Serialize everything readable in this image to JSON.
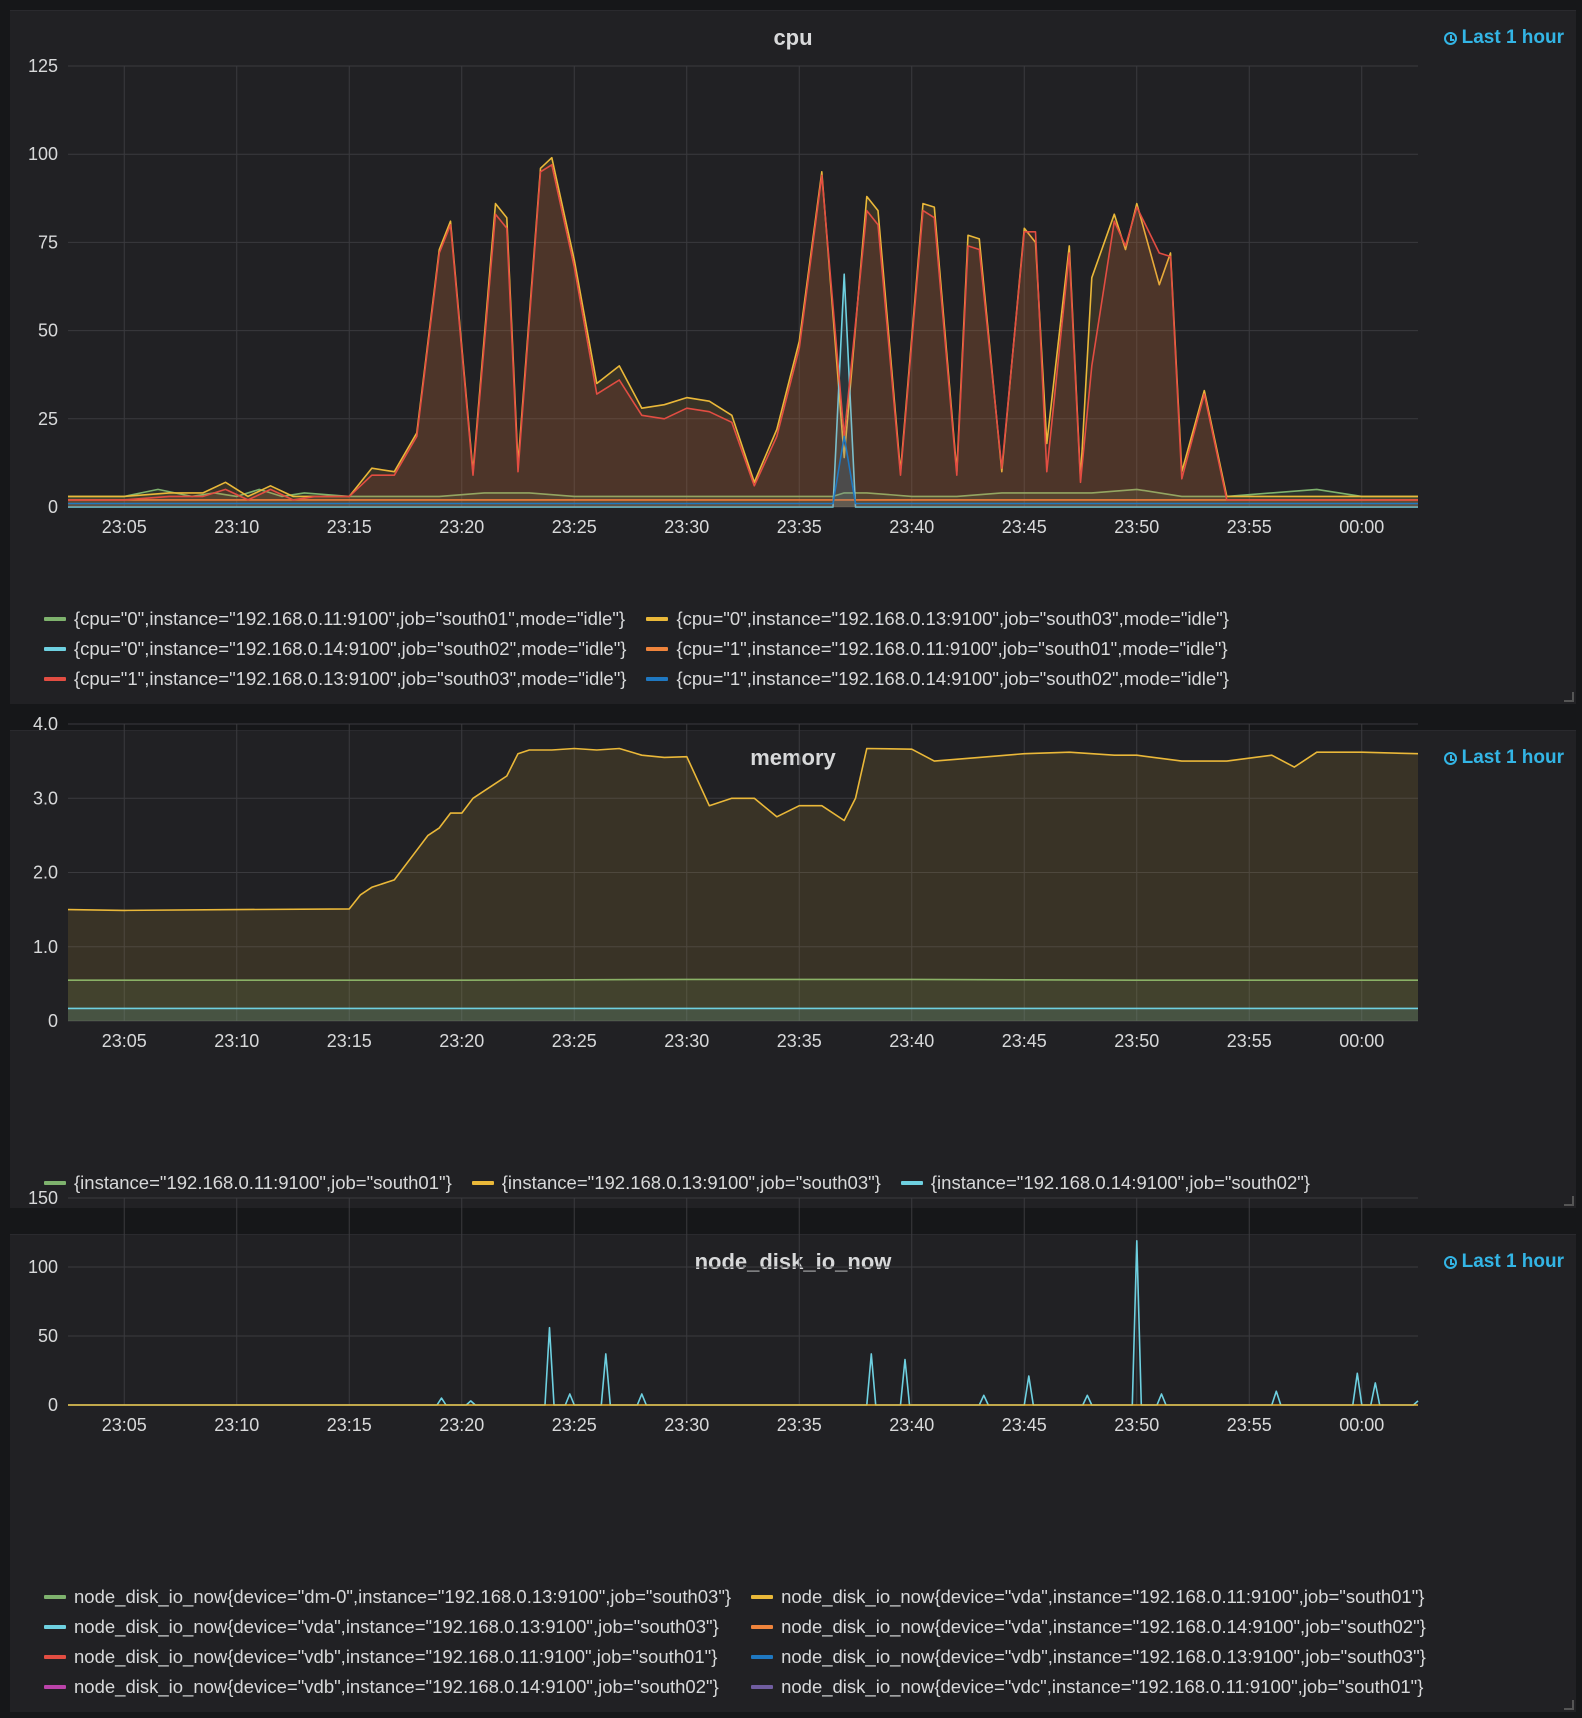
{
  "timerange_label": "Last 1 hour",
  "panels": {
    "cpu": {
      "title": "cpu",
      "legend": [
        {
          "label": "{cpu=\"0\",instance=\"192.168.0.11:9100\",job=\"south01\",mode=\"idle\"}",
          "color": "#7eb26d"
        },
        {
          "label": "{cpu=\"0\",instance=\"192.168.0.13:9100\",job=\"south03\",mode=\"idle\"}",
          "color": "#eab839"
        },
        {
          "label": "{cpu=\"0\",instance=\"192.168.0.14:9100\",job=\"south02\",mode=\"idle\"}",
          "color": "#6ed0e0"
        },
        {
          "label": "{cpu=\"1\",instance=\"192.168.0.11:9100\",job=\"south01\",mode=\"idle\"}",
          "color": "#ef843c"
        },
        {
          "label": "{cpu=\"1\",instance=\"192.168.0.13:9100\",job=\"south03\",mode=\"idle\"}",
          "color": "#e24d42"
        },
        {
          "label": "{cpu=\"1\",instance=\"192.168.0.14:9100\",job=\"south02\",mode=\"idle\"}",
          "color": "#1f78c1"
        }
      ]
    },
    "memory": {
      "title": "memory",
      "legend": [
        {
          "label": "{instance=\"192.168.0.11:9100\",job=\"south01\"}",
          "color": "#7eb26d"
        },
        {
          "label": "{instance=\"192.168.0.13:9100\",job=\"south03\"}",
          "color": "#eab839"
        },
        {
          "label": "{instance=\"192.168.0.14:9100\",job=\"south02\"}",
          "color": "#6ed0e0"
        }
      ]
    },
    "disk": {
      "title": "node_disk_io_now",
      "legend": [
        {
          "label": "node_disk_io_now{device=\"dm-0\",instance=\"192.168.0.13:9100\",job=\"south03\"}",
          "color": "#7eb26d"
        },
        {
          "label": "node_disk_io_now{device=\"vda\",instance=\"192.168.0.11:9100\",job=\"south01\"}",
          "color": "#eab839"
        },
        {
          "label": "node_disk_io_now{device=\"vda\",instance=\"192.168.0.13:9100\",job=\"south03\"}",
          "color": "#6ed0e0"
        },
        {
          "label": "node_disk_io_now{device=\"vda\",instance=\"192.168.0.14:9100\",job=\"south02\"}",
          "color": "#ef843c"
        },
        {
          "label": "node_disk_io_now{device=\"vdb\",instance=\"192.168.0.11:9100\",job=\"south01\"}",
          "color": "#e24d42"
        },
        {
          "label": "node_disk_io_now{device=\"vdb\",instance=\"192.168.0.13:9100\",job=\"south03\"}",
          "color": "#1f78c1"
        },
        {
          "label": "node_disk_io_now{device=\"vdb\",instance=\"192.168.0.14:9100\",job=\"south02\"}",
          "color": "#ba43a9"
        },
        {
          "label": "node_disk_io_now{device=\"vdc\",instance=\"192.168.0.11:9100\",job=\"south01\"}",
          "color": "#705da0"
        }
      ]
    }
  },
  "chart_data": [
    {
      "type": "area",
      "title": "cpu",
      "x_ticks": [
        "23:05",
        "23:10",
        "23:15",
        "23:20",
        "23:25",
        "23:30",
        "23:35",
        "23:40",
        "23:45",
        "23:50",
        "23:55",
        "00:00"
      ],
      "y_ticks": [
        "0",
        "25",
        "50",
        "75",
        "100",
        "125"
      ],
      "ylim": [
        0,
        125
      ],
      "xlim_minutes": [
        2.5,
        62.5
      ],
      "grid": true,
      "legend_position": "bottom",
      "series": [
        {
          "name": "{cpu=\"0\",instance=\"192.168.0.11:9100\",job=\"south01\",mode=\"idle\"}",
          "color": "#7eb26d",
          "x": [
            2.5,
            5,
            6.5,
            8,
            9,
            10,
            11,
            12,
            13,
            15,
            17,
            19,
            21,
            23,
            25,
            27,
            29,
            31,
            33,
            35,
            36.5,
            37,
            38,
            40,
            42,
            44,
            46,
            48,
            50,
            52,
            54,
            56,
            58,
            60,
            62.5
          ],
          "y": [
            3,
            3,
            5,
            3,
            4,
            3,
            5,
            3,
            4,
            3,
            3,
            3,
            4,
            4,
            3,
            3,
            3,
            3,
            3,
            3,
            3,
            4,
            4,
            3,
            3,
            4,
            4,
            4,
            5,
            3,
            3,
            4,
            5,
            3,
            3
          ]
        },
        {
          "name": "{cpu=\"0\",instance=\"192.168.0.13:9100\",job=\"south03\",mode=\"idle\"}",
          "color": "#eab839",
          "x": [
            2.5,
            5,
            7,
            8.5,
            9.5,
            10.5,
            11.5,
            12.5,
            13.5,
            15,
            16,
            17,
            18,
            19,
            19.5,
            20.5,
            21.5,
            22,
            22.5,
            23.5,
            24,
            25,
            26,
            27,
            28,
            29,
            30,
            31,
            32,
            33,
            34,
            35,
            36,
            37,
            38,
            38.5,
            39.5,
            40.5,
            41,
            42,
            42.5,
            43,
            44,
            45,
            45.5,
            46,
            47,
            47.5,
            48,
            49,
            49.5,
            50,
            51,
            51.5,
            52,
            53,
            54,
            55,
            56,
            57,
            58,
            59,
            60,
            61,
            62,
            62.5
          ],
          "y": [
            3,
            3,
            4,
            4,
            7,
            3,
            6,
            3,
            3,
            3,
            11,
            10,
            21,
            73,
            81,
            10,
            86,
            82,
            12,
            96,
            99,
            70,
            35,
            40,
            28,
            29,
            31,
            30,
            26,
            7,
            22,
            47,
            95,
            14,
            88,
            84,
            10,
            86,
            85,
            10,
            77,
            76,
            10,
            79,
            75,
            18,
            74,
            8,
            65,
            83,
            73,
            86,
            63,
            72,
            10,
            33,
            3,
            3,
            3,
            3,
            3,
            3,
            3,
            3,
            3,
            3
          ]
        },
        {
          "name": "{cpu=\"0\",instance=\"192.168.0.14:9100\",job=\"south02\",mode=\"idle\"}",
          "color": "#6ed0e0",
          "x": [
            2.5,
            20,
            35,
            36.5,
            37,
            37.5,
            38,
            39,
            62.5
          ],
          "y": [
            0,
            0,
            0,
            0,
            66,
            0,
            0,
            0,
            0
          ]
        },
        {
          "name": "{cpu=\"1\",instance=\"192.168.0.11:9100\",job=\"south01\",mode=\"idle\"}",
          "color": "#ef843c",
          "x": [
            2.5,
            10,
            15,
            20,
            25,
            30,
            35,
            40,
            45,
            50,
            55,
            60,
            62.5
          ],
          "y": [
            2,
            2,
            2,
            2,
            2,
            2,
            2,
            2,
            2,
            2,
            2,
            2,
            2
          ]
        },
        {
          "name": "{cpu=\"1\",instance=\"192.168.0.13:9100\",job=\"south03\",mode=\"idle\"}",
          "color": "#e24d42",
          "x": [
            2.5,
            5,
            7,
            8.5,
            9.5,
            10.5,
            11.5,
            12.5,
            13.5,
            15,
            16,
            17,
            18,
            19,
            19.5,
            20.5,
            21.5,
            22,
            22.5,
            23.5,
            24,
            25,
            26,
            27,
            28,
            29,
            30,
            31,
            32,
            33,
            34,
            35,
            36,
            37,
            38,
            38.5,
            39.5,
            40.5,
            41,
            42,
            42.5,
            43,
            44,
            45,
            45.5,
            46,
            47,
            47.5,
            48,
            49,
            49.5,
            50,
            51,
            51.5,
            52,
            53,
            54,
            55,
            56,
            57,
            58,
            59,
            60,
            61,
            62,
            62.5
          ],
          "y": [
            2,
            2,
            3,
            3,
            5,
            2,
            5,
            2,
            3,
            3,
            9,
            9,
            20,
            72,
            80,
            9,
            83,
            79,
            10,
            95,
            97,
            68,
            32,
            36,
            26,
            25,
            28,
            27,
            24,
            6,
            20,
            45,
            94,
            20,
            84,
            80,
            9,
            84,
            82,
            9,
            74,
            73,
            11,
            78,
            78,
            10,
            72,
            7,
            40,
            81,
            74,
            85,
            72,
            71,
            8,
            32,
            2,
            2,
            2,
            2,
            2,
            2,
            2,
            2,
            2,
            2
          ]
        },
        {
          "name": "{cpu=\"1\",instance=\"192.168.0.14:9100\",job=\"south02\",mode=\"idle\"}",
          "color": "#1f78c1",
          "x": [
            2.5,
            20,
            35,
            36.5,
            37,
            37.5,
            38,
            39,
            62.5
          ],
          "y": [
            1,
            1,
            1,
            1,
            20,
            1,
            1,
            1,
            1
          ]
        }
      ]
    },
    {
      "type": "area",
      "title": "memory",
      "x_ticks": [
        "23:05",
        "23:10",
        "23:15",
        "23:20",
        "23:25",
        "23:30",
        "23:35",
        "23:40",
        "23:45",
        "23:50",
        "23:55",
        "00:00"
      ],
      "y_ticks": [
        "0",
        "1.0",
        "2.0",
        "3.0",
        "4.0"
      ],
      "ylim": [
        0,
        4.0
      ],
      "xlim_minutes": [
        2.5,
        62.5
      ],
      "grid": true,
      "legend_position": "bottom",
      "series": [
        {
          "name": "{instance=\"192.168.0.11:9100\",job=\"south01\"}",
          "color": "#7eb26d",
          "x": [
            2.5,
            10,
            20,
            30,
            40,
            50,
            62.5
          ],
          "y": [
            0.55,
            0.55,
            0.55,
            0.56,
            0.56,
            0.55,
            0.55
          ]
        },
        {
          "name": "{instance=\"192.168.0.13:9100\",job=\"south03\"}",
          "color": "#eab839",
          "x": [
            2.5,
            5,
            10,
            15,
            15.5,
            16,
            17,
            18,
            18.5,
            19,
            19.5,
            20,
            20.5,
            21,
            21.5,
            22,
            22.5,
            23,
            24,
            25,
            26,
            27,
            28,
            29,
            30,
            31,
            32,
            33,
            34,
            35,
            36,
            37,
            37.5,
            38,
            40,
            41,
            43,
            45,
            47,
            49,
            50,
            52,
            54,
            56,
            57,
            58,
            60,
            62.5
          ],
          "y": [
            1.5,
            1.49,
            1.5,
            1.51,
            1.7,
            1.8,
            1.9,
            2.3,
            2.5,
            2.6,
            2.8,
            2.8,
            3.0,
            3.1,
            3.2,
            3.3,
            3.6,
            3.65,
            3.65,
            3.67,
            3.65,
            3.67,
            3.58,
            3.55,
            3.56,
            2.9,
            3.0,
            3.0,
            2.75,
            2.9,
            2.9,
            2.7,
            3.0,
            3.67,
            3.66,
            3.5,
            3.55,
            3.6,
            3.62,
            3.58,
            3.58,
            3.5,
            3.5,
            3.58,
            3.42,
            3.62,
            3.62,
            3.6
          ]
        },
        {
          "name": "{instance=\"192.168.0.14:9100\",job=\"south02\"}",
          "color": "#6ed0e0",
          "x": [
            2.5,
            20,
            40,
            62.5
          ],
          "y": [
            0.17,
            0.17,
            0.17,
            0.17
          ]
        }
      ]
    },
    {
      "type": "line",
      "title": "node_disk_io_now",
      "x_ticks": [
        "23:05",
        "23:10",
        "23:15",
        "23:20",
        "23:25",
        "23:30",
        "23:35",
        "23:40",
        "23:45",
        "23:50",
        "23:55",
        "00:00"
      ],
      "y_ticks": [
        "0",
        "50",
        "100",
        "150"
      ],
      "ylim": [
        0,
        150
      ],
      "xlim_minutes": [
        2.5,
        62.5
      ],
      "grid": true,
      "legend_position": "bottom",
      "series": [
        {
          "name": "node_disk_io_now{device=\"vda\",instance=\"192.168.0.13:9100\",job=\"south03\"}",
          "color": "#6ed0e0",
          "x": [
            2.5,
            18.9,
            19.1,
            19.3,
            20.2,
            20.4,
            20.6,
            23.7,
            23.9,
            24.1,
            24.6,
            24.8,
            25,
            26.2,
            26.4,
            26.6,
            27.8,
            28,
            28.2,
            38,
            38.2,
            38.4,
            39.5,
            39.7,
            39.9,
            43,
            43.2,
            43.4,
            45,
            45.2,
            45.4,
            47.6,
            47.8,
            48,
            49.8,
            50,
            50.2,
            50.9,
            51.1,
            51.3,
            56,
            56.2,
            56.4,
            59.6,
            59.8,
            60,
            60.4,
            60.6,
            60.8,
            62.3,
            62.5
          ],
          "y": [
            0,
            0,
            5,
            0,
            0,
            3,
            0,
            0,
            56,
            0,
            0,
            8,
            0,
            0,
            37,
            0,
            0,
            8,
            0,
            0,
            37,
            0,
            0,
            33,
            0,
            0,
            7,
            0,
            0,
            21,
            0,
            0,
            7,
            0,
            0,
            119,
            0,
            0,
            8,
            0,
            0,
            10,
            0,
            0,
            23,
            0,
            0,
            16,
            0,
            0,
            3
          ]
        },
        {
          "name": "node_disk_io_now{device=\"vda\",instance=\"192.168.0.11:9100\",job=\"south01\"}",
          "color": "#eab839",
          "x": [
            2.5,
            62.5
          ],
          "y": [
            0,
            0
          ]
        }
      ]
    }
  ]
}
